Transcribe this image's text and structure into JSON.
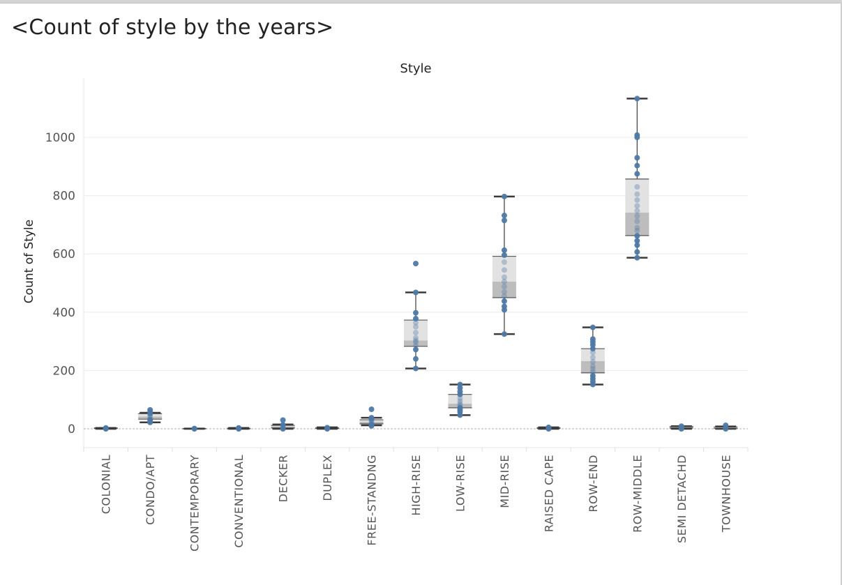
{
  "page": {
    "title": "<Count of style by the years>"
  },
  "chart_data": {
    "type": "box",
    "column_header": "Style",
    "ylabel": "Count of Style",
    "ylim": [
      -60,
      1140
    ],
    "yticks": [
      0,
      200,
      400,
      600,
      800,
      1000
    ],
    "grid": true,
    "colors": {
      "point": "#4e79a7",
      "upper_box": "#e2e2e2",
      "lower_box": "#bdbdbd",
      "whisker": "#3a3a3a"
    },
    "categories": [
      "COLONIAL",
      "CONDO/APT",
      "CONTEMPORARY",
      "CONVENTIONAL",
      "DECKER",
      "DUPLEX",
      "FREE-STANDNG",
      "HIGH-RISE",
      "LOW-RISE",
      "MID-RISE",
      "RAISED CAPE",
      "ROW-END",
      "ROW-MIDDLE",
      "SEMI DETACHD",
      "TOWNHOUSE"
    ],
    "boxes": [
      {
        "min": 0,
        "q1": 1,
        "median": 2,
        "q3": 3,
        "max": 3,
        "points": [
          0,
          1,
          2,
          3
        ]
      },
      {
        "min": 22,
        "q1": 33,
        "median": 42,
        "q3": 52,
        "max": 55,
        "points": [
          22,
          26,
          31,
          38,
          45,
          52,
          58,
          65
        ]
      },
      {
        "min": 0,
        "q1": 0,
        "median": 0,
        "q3": 1,
        "max": 1,
        "points": [
          0,
          1
        ]
      },
      {
        "min": 0,
        "q1": 0,
        "median": 1,
        "q3": 2,
        "max": 3,
        "points": [
          0,
          1,
          2,
          3
        ]
      },
      {
        "min": 0,
        "q1": 3,
        "median": 8,
        "q3": 12,
        "max": 15,
        "points": [
          0,
          4,
          9,
          14,
          30
        ]
      },
      {
        "min": 0,
        "q1": 1,
        "median": 2,
        "q3": 4,
        "max": 5,
        "points": [
          0,
          2,
          4
        ]
      },
      {
        "min": 12,
        "q1": 17,
        "median": 24,
        "q3": 31,
        "max": 38,
        "points": [
          10,
          14,
          18,
          23,
          28,
          34,
          38,
          67
        ]
      },
      {
        "min": 207,
        "q1": 283,
        "median": 303,
        "q3": 373,
        "max": 468,
        "points": [
          207,
          240,
          272,
          285,
          297,
          303,
          312,
          330,
          350,
          364,
          378,
          398,
          468,
          567
        ]
      },
      {
        "min": 47,
        "q1": 72,
        "median": 86,
        "q3": 118,
        "max": 152,
        "points": [
          47,
          58,
          65,
          72,
          80,
          86,
          95,
          105,
          118,
          128,
          140,
          152
        ]
      },
      {
        "min": 325,
        "q1": 450,
        "median": 505,
        "q3": 592,
        "max": 797,
        "points": [
          325,
          408,
          420,
          438,
          455,
          470,
          488,
          505,
          520,
          545,
          572,
          596,
          613,
          715,
          732,
          797
        ]
      },
      {
        "min": 0,
        "q1": 1,
        "median": 2,
        "q3": 4,
        "max": 5,
        "points": [
          0,
          2,
          5
        ]
      },
      {
        "min": 152,
        "q1": 192,
        "median": 232,
        "q3": 275,
        "max": 348,
        "points": [
          152,
          162,
          172,
          182,
          195,
          205,
          215,
          230,
          245,
          262,
          275,
          288,
          298,
          308,
          348
        ]
      },
      {
        "min": 587,
        "q1": 663,
        "median": 742,
        "q3": 857,
        "max": 1133,
        "points": [
          587,
          607,
          630,
          645,
          662,
          680,
          690,
          712,
          730,
          748,
          765,
          785,
          805,
          830,
          875,
          903,
          930,
          1000,
          1008,
          1133
        ]
      },
      {
        "min": 0,
        "q1": 3,
        "median": 5,
        "q3": 8,
        "max": 9,
        "points": [
          0,
          4,
          9
        ]
      },
      {
        "min": 0,
        "q1": 1,
        "median": 3,
        "q3": 6,
        "max": 8,
        "points": [
          0,
          5,
          12
        ]
      }
    ]
  }
}
